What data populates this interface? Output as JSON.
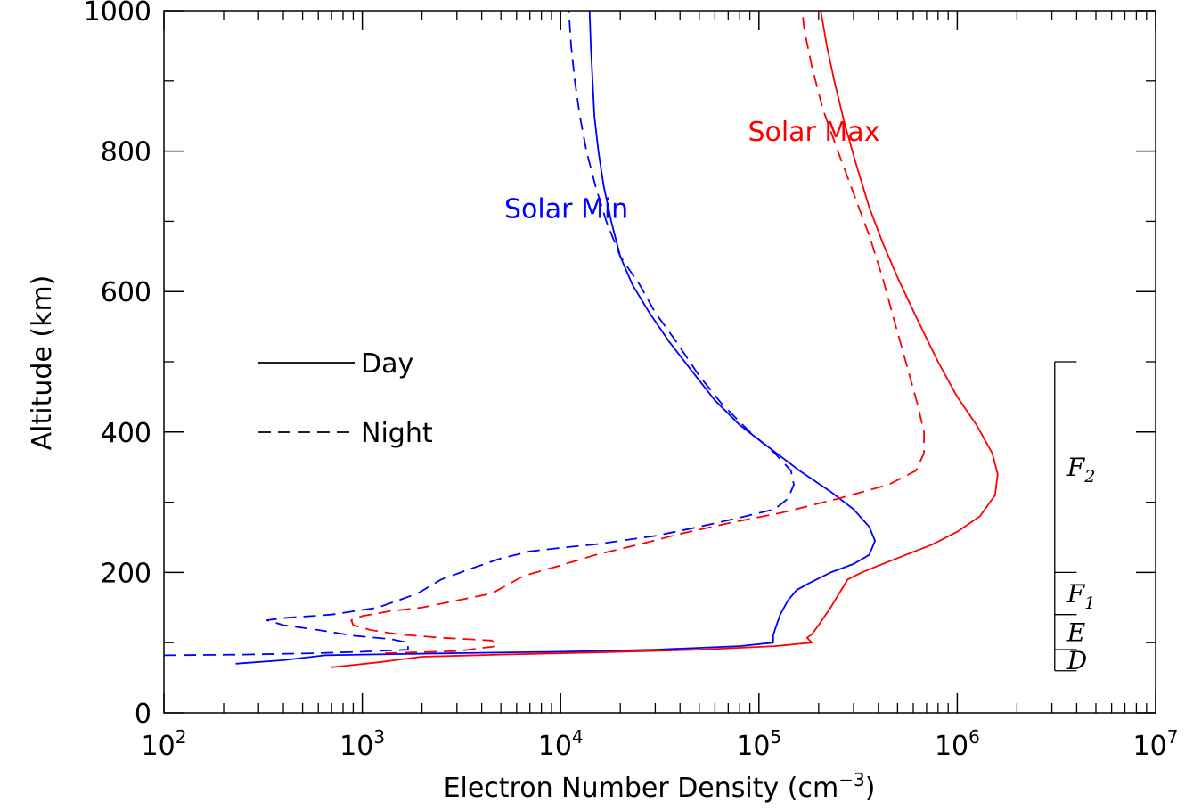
{
  "chart_data": {
    "type": "line",
    "title": "",
    "xlabel": "Electron Number Density (cm",
    "xlabel_sup": "−3",
    "xlabel_close": ")",
    "ylabel": "Altitude (km)",
    "xscale": "log",
    "xlim": [
      100,
      10000000
    ],
    "ylim": [
      0,
      1000
    ],
    "grid": false,
    "x_ticks": [
      {
        "value": 100,
        "base": "10",
        "exp": "2"
      },
      {
        "value": 1000,
        "base": "10",
        "exp": "3"
      },
      {
        "value": 10000,
        "base": "10",
        "exp": "4"
      },
      {
        "value": 100000,
        "base": "10",
        "exp": "5"
      },
      {
        "value": 1000000,
        "base": "10",
        "exp": "6"
      },
      {
        "value": 10000000,
        "base": "10",
        "exp": "7"
      }
    ],
    "y_ticks": [
      {
        "value": 0,
        "label": "0"
      },
      {
        "value": 200,
        "label": "200"
      },
      {
        "value": 400,
        "label": "400"
      },
      {
        "value": 600,
        "label": "600"
      },
      {
        "value": 800,
        "label": "800"
      },
      {
        "value": 1000,
        "label": "1000"
      }
    ],
    "y_minor_step": 100,
    "legend": {
      "placement": "left-middle",
      "entries": [
        {
          "label": "Day",
          "style": "solid"
        },
        {
          "label": "Night",
          "style": "dashed"
        }
      ]
    },
    "annotations": [
      {
        "text": "Solar Min",
        "color": "#0000ff",
        "x": 5200,
        "y": 705
      },
      {
        "text": "Solar Max",
        "color": "#ff0000",
        "x": 88000,
        "y": 815
      }
    ],
    "layers": [
      {
        "name": "F",
        "sub": "2",
        "y_from": 200,
        "y_to": 500
      },
      {
        "name": "F",
        "sub": "1",
        "y_from": 140,
        "y_to": 200
      },
      {
        "name": "E",
        "sub": "",
        "y_from": 90,
        "y_to": 140
      },
      {
        "name": "D",
        "sub": "",
        "y_from": 60,
        "y_to": 90
      }
    ],
    "layer_bar_x": [
      3100000,
      4000000
    ],
    "series": [
      {
        "color": "#0000ff",
        "style": "solid",
        "points": [
          [
            230,
            70
          ],
          [
            400,
            75
          ],
          [
            650,
            82
          ],
          [
            1000,
            83
          ],
          [
            3000,
            85
          ],
          [
            10000,
            87
          ],
          [
            30000,
            90
          ],
          [
            80000,
            95
          ],
          [
            118000,
            100
          ],
          [
            118000,
            110
          ],
          [
            121000,
            120
          ],
          [
            128000,
            140
          ],
          [
            140000,
            160
          ],
          [
            155000,
            175
          ],
          [
            180000,
            185
          ],
          [
            230000,
            200
          ],
          [
            300000,
            212
          ],
          [
            360000,
            225
          ],
          [
            385000,
            245
          ],
          [
            360000,
            265
          ],
          [
            300000,
            290
          ],
          [
            230000,
            315
          ],
          [
            160000,
            345
          ],
          [
            110000,
            380
          ],
          [
            80000,
            410
          ],
          [
            60000,
            445
          ],
          [
            45000,
            490
          ],
          [
            35000,
            530
          ],
          [
            28000,
            570
          ],
          [
            23000,
            610
          ],
          [
            20000,
            650
          ],
          [
            18000,
            700
          ],
          [
            16500,
            750
          ],
          [
            15500,
            800
          ],
          [
            14800,
            850
          ],
          [
            14500,
            900
          ],
          [
            14200,
            950
          ],
          [
            14000,
            1000
          ]
        ]
      },
      {
        "color": "#0000ff",
        "style": "dashed",
        "points": [
          [
            100,
            82
          ],
          [
            250,
            83
          ],
          [
            600,
            85
          ],
          [
            1000,
            87
          ],
          [
            1700,
            90
          ],
          [
            1700,
            100
          ],
          [
            1400,
            105
          ],
          [
            900,
            110
          ],
          [
            600,
            118
          ],
          [
            400,
            125
          ],
          [
            330,
            132
          ],
          [
            400,
            135
          ],
          [
            700,
            140
          ],
          [
            1200,
            150
          ],
          [
            1900,
            170
          ],
          [
            2500,
            190
          ],
          [
            3500,
            205
          ],
          [
            5000,
            220
          ],
          [
            7000,
            230
          ],
          [
            10000,
            235
          ],
          [
            15000,
            240
          ],
          [
            20000,
            245
          ],
          [
            30000,
            252
          ],
          [
            50000,
            265
          ],
          [
            80000,
            278
          ],
          [
            120000,
            290
          ],
          [
            140000,
            305
          ],
          [
            150000,
            325
          ],
          [
            145000,
            345
          ],
          [
            120000,
            370
          ],
          [
            90000,
            400
          ],
          [
            65000,
            440
          ],
          [
            50000,
            480
          ],
          [
            38000,
            530
          ],
          [
            30000,
            570
          ],
          [
            25000,
            610
          ],
          [
            20000,
            650
          ],
          [
            17000,
            700
          ],
          [
            15000,
            750
          ],
          [
            13500,
            800
          ],
          [
            12500,
            850
          ],
          [
            11800,
            900
          ],
          [
            11300,
            950
          ],
          [
            11000,
            1000
          ]
        ]
      },
      {
        "color": "#ff0000",
        "style": "solid",
        "points": [
          [
            700,
            65
          ],
          [
            1200,
            72
          ],
          [
            2000,
            80
          ],
          [
            5000,
            83
          ],
          [
            15000,
            86
          ],
          [
            50000,
            90
          ],
          [
            120000,
            95
          ],
          [
            185000,
            100
          ],
          [
            175000,
            107
          ],
          [
            185000,
            112
          ],
          [
            200000,
            125
          ],
          [
            230000,
            150
          ],
          [
            260000,
            175
          ],
          [
            280000,
            190
          ],
          [
            330000,
            200
          ],
          [
            420000,
            212
          ],
          [
            550000,
            225
          ],
          [
            750000,
            240
          ],
          [
            1000000,
            258
          ],
          [
            1300000,
            280
          ],
          [
            1550000,
            310
          ],
          [
            1600000,
            340
          ],
          [
            1500000,
            370
          ],
          [
            1250000,
            410
          ],
          [
            1000000,
            450
          ],
          [
            800000,
            500
          ],
          [
            630000,
            560
          ],
          [
            500000,
            620
          ],
          [
            420000,
            670
          ],
          [
            360000,
            720
          ],
          [
            310000,
            780
          ],
          [
            270000,
            840
          ],
          [
            240000,
            900
          ],
          [
            220000,
            950
          ],
          [
            205000,
            1000
          ]
        ]
      },
      {
        "color": "#ff0000",
        "style": "dashed",
        "points": [
          [
            1300,
            85
          ],
          [
            3000,
            88
          ],
          [
            4800,
            95
          ],
          [
            4500,
            103
          ],
          [
            2500,
            107
          ],
          [
            1500,
            112
          ],
          [
            1100,
            118
          ],
          [
            900,
            125
          ],
          [
            880,
            132
          ],
          [
            1000,
            138
          ],
          [
            1400,
            145
          ],
          [
            2000,
            150
          ],
          [
            3000,
            160
          ],
          [
            4500,
            170
          ],
          [
            6500,
            195
          ],
          [
            10000,
            210
          ],
          [
            15000,
            225
          ],
          [
            25000,
            240
          ],
          [
            40000,
            255
          ],
          [
            70000,
            270
          ],
          [
            130000,
            285
          ],
          [
            250000,
            305
          ],
          [
            450000,
            325
          ],
          [
            620000,
            345
          ],
          [
            680000,
            370
          ],
          [
            680000,
            400
          ],
          [
            630000,
            440
          ],
          [
            550000,
            500
          ],
          [
            480000,
            560
          ],
          [
            420000,
            620
          ],
          [
            360000,
            680
          ],
          [
            300000,
            740
          ],
          [
            250000,
            800
          ],
          [
            210000,
            860
          ],
          [
            185000,
            920
          ],
          [
            170000,
            970
          ],
          [
            165000,
            1000
          ]
        ]
      }
    ]
  }
}
